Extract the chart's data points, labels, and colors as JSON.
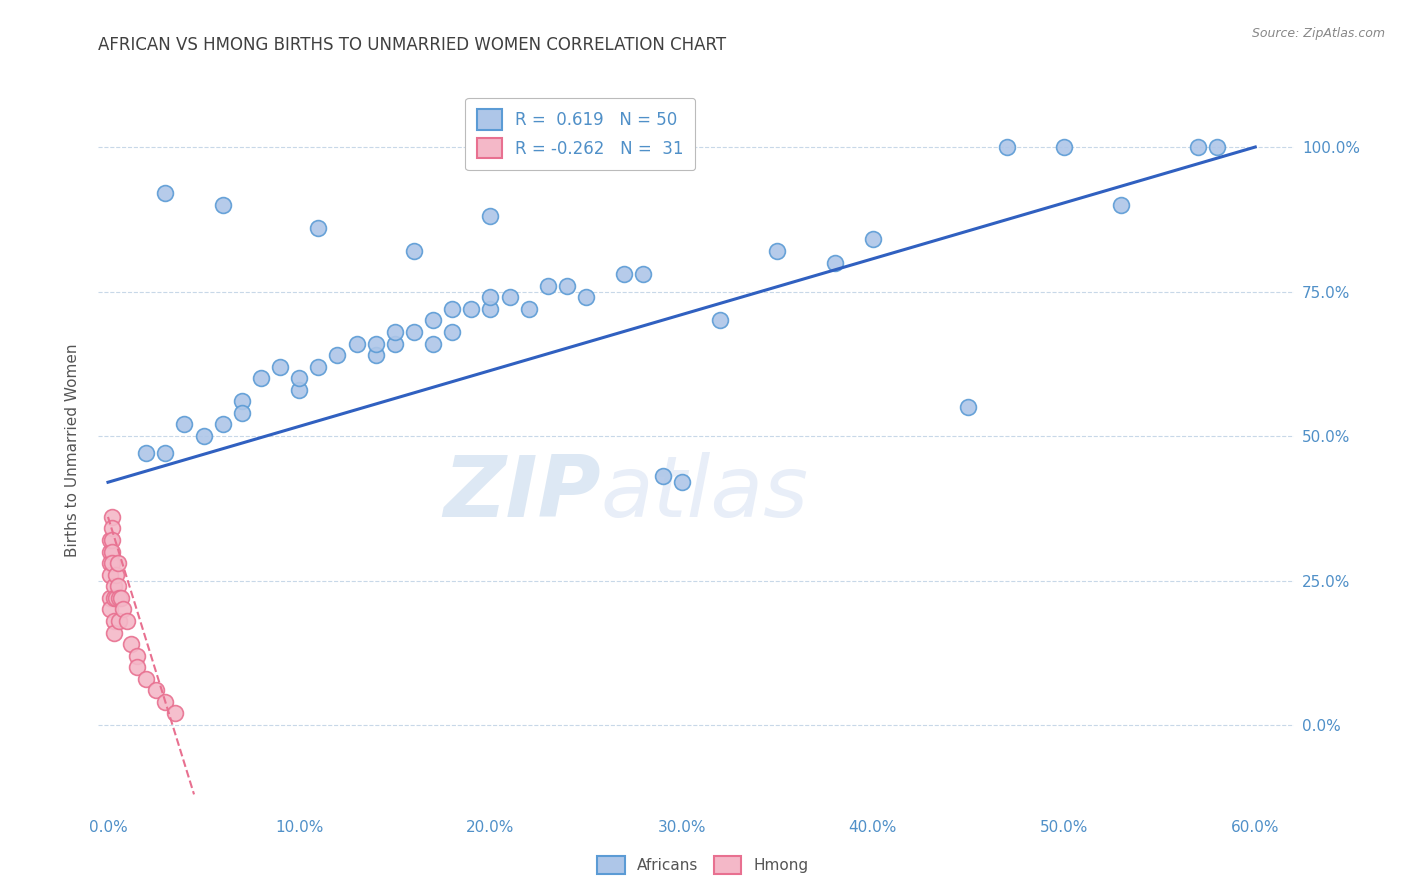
{
  "title": "AFRICAN VS HMONG BIRTHS TO UNMARRIED WOMEN CORRELATION CHART",
  "source": "Source: ZipAtlas.com",
  "ylabel": "Births to Unmarried Women",
  "x_tick_labels": [
    "0.0%",
    "10.0%",
    "20.0%",
    "30.0%",
    "40.0%",
    "50.0%",
    "60.0%"
  ],
  "x_tick_vals": [
    0,
    10,
    20,
    30,
    40,
    50,
    60
  ],
  "y_tick_labels": [
    "0.0%",
    "25.0%",
    "50.0%",
    "75.0%",
    "100.0%"
  ],
  "y_tick_vals": [
    0,
    25,
    50,
    75,
    100
  ],
  "xlim": [
    -0.5,
    62
  ],
  "ylim": [
    -15,
    110
  ],
  "legend_r_african": "0.619",
  "legend_n_african": "50",
  "legend_r_hmong": "-0.262",
  "legend_n_hmong": "31",
  "african_color": "#aec6e8",
  "african_edge_color": "#5b9bd5",
  "hmong_color": "#f4b8c8",
  "hmong_edge_color": "#e87090",
  "trend_african_color": "#3060c0",
  "trend_hmong_color": "#e87090",
  "grid_color": "#c8d8e8",
  "label_color": "#5090c8",
  "title_color": "#404040",
  "source_color": "#888888",
  "watermark_color": "#dde8f4",
  "background_color": "#ffffff",
  "african_x": [
    2,
    3,
    4,
    5,
    6,
    7,
    7,
    8,
    9,
    10,
    10,
    11,
    12,
    13,
    14,
    14,
    15,
    15,
    16,
    17,
    17,
    18,
    18,
    19,
    20,
    20,
    21,
    22,
    23,
    24,
    25,
    27,
    29,
    30,
    32,
    35,
    38,
    40,
    45,
    47,
    50,
    53,
    57,
    58,
    20,
    28,
    16,
    11,
    6,
    3
  ],
  "african_y": [
    47,
    47,
    52,
    50,
    52,
    56,
    54,
    60,
    62,
    58,
    60,
    62,
    64,
    66,
    64,
    66,
    66,
    68,
    68,
    66,
    70,
    68,
    72,
    72,
    72,
    74,
    74,
    72,
    76,
    76,
    74,
    78,
    43,
    42,
    70,
    82,
    80,
    84,
    55,
    100,
    100,
    90,
    100,
    100,
    88,
    78,
    82,
    86,
    90,
    92
  ],
  "hmong_x": [
    0.1,
    0.1,
    0.1,
    0.1,
    0.1,
    0.1,
    0.2,
    0.2,
    0.2,
    0.2,
    0.2,
    0.3,
    0.3,
    0.3,
    0.3,
    0.4,
    0.4,
    0.5,
    0.5,
    0.6,
    0.6,
    0.7,
    0.8,
    1.0,
    1.2,
    1.5,
    1.5,
    2.0,
    2.5,
    3.0,
    3.5
  ],
  "hmong_y": [
    30,
    32,
    28,
    26,
    22,
    20,
    36,
    34,
    32,
    30,
    28,
    24,
    22,
    18,
    16,
    26,
    22,
    28,
    24,
    22,
    18,
    22,
    20,
    18,
    14,
    12,
    10,
    8,
    6,
    4,
    2
  ],
  "trend_african_x0": 0,
  "trend_african_x1": 60,
  "trend_african_y0": 42,
  "trend_african_y1": 100,
  "trend_hmong_x0": 0.0,
  "trend_hmong_x1": 4.5,
  "trend_hmong_y0": 36,
  "trend_hmong_y1": -12,
  "marker_size": 130,
  "marker_linewidth": 1.2
}
